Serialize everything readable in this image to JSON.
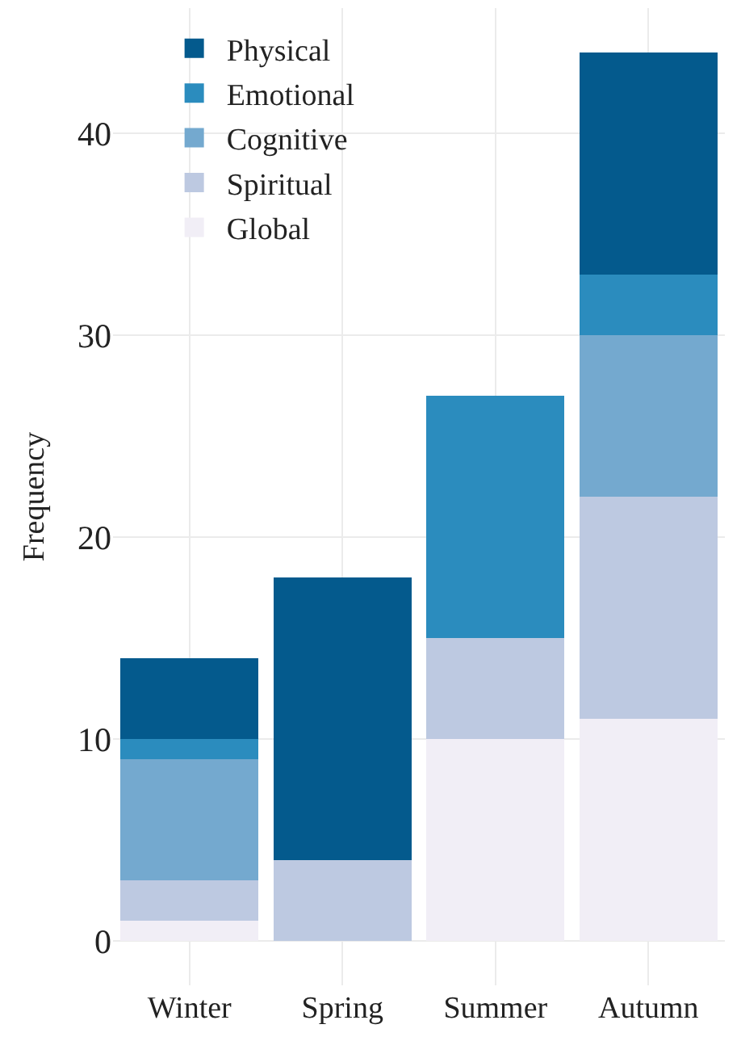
{
  "chart_data": {
    "type": "bar",
    "stacked": true,
    "ylabel": "Frequency",
    "categories": [
      "Winter",
      "Spring",
      "Summer",
      "Autumn"
    ],
    "series": [
      {
        "name": "Global",
        "color": "#f1eef6",
        "values": [
          1,
          null,
          10,
          11
        ]
      },
      {
        "name": "Spiritual",
        "color": "#bdc9e1",
        "values": [
          2,
          4,
          5,
          11
        ]
      },
      {
        "name": "Cognitive",
        "color": "#74a9cf",
        "values": [
          6,
          null,
          null,
          8
        ]
      },
      {
        "name": "Emotional",
        "color": "#2b8cbe",
        "values": [
          1,
          null,
          12,
          3
        ]
      },
      {
        "name": "Physical",
        "color": "#045a8d",
        "values": [
          4,
          14,
          null,
          11
        ]
      }
    ],
    "ylim": [
      -2.2,
      46.2
    ],
    "yticks": [
      0,
      10,
      20,
      30,
      40
    ],
    "grid": true,
    "legend": "top left"
  }
}
